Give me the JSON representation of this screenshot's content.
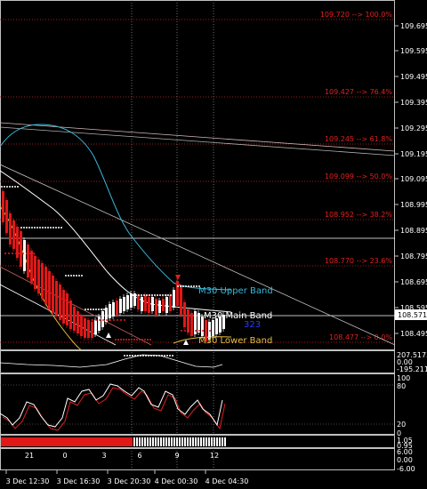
{
  "colors": {
    "background": "#000000",
    "upper_band": "#3ab8d8",
    "main_band": "#ffffff",
    "lower_band": "#e8c040",
    "fib": "#e02020",
    "bear_candle": "#e01818",
    "bull_candle": "#ffffff",
    "price_marker": "#2040ff"
  },
  "price_axis": {
    "ticks": [
      "109.695",
      "109.595",
      "109.495",
      "109.395",
      "109.295",
      "109.195",
      "109.095",
      "108.995",
      "108.895",
      "108.795",
      "108.695",
      "108.595",
      "108.495"
    ],
    "current_price": "108.571"
  },
  "fib_levels": [
    {
      "label": "109.720 --> 100.0%"
    },
    {
      "label": "109.427 --> 76.4%"
    },
    {
      "label": "109.245 --> 61.8%"
    },
    {
      "label": "109.099 --> 50.0%"
    },
    {
      "label": "108.952 --> 38.2%"
    },
    {
      "label": "108.770 --> 23.6%"
    },
    {
      "label": "108.477 --> 0.0%"
    }
  ],
  "band_labels": {
    "upper": "M30 Upper Band",
    "main": "M30 Main Band",
    "lower": "M30 Lower Band"
  },
  "countdown": "323",
  "indicator1": {
    "ticks": [
      "207.5173",
      "0.00",
      "-195.211"
    ]
  },
  "indicator2": {
    "ticks": [
      "100",
      "80",
      "20",
      "0"
    ]
  },
  "indicator3": {
    "ticks": [
      "1.05",
      "0.95"
    ]
  },
  "indicator4": {
    "ticks": [
      "6.00",
      "0.00",
      "-6.00"
    ]
  },
  "hour_labels": [
    "21",
    "0",
    "3",
    "6",
    "9",
    "12"
  ],
  "time_labels": [
    "3 Dec 12:30",
    "3 Dec 16:30",
    "3 Dec 20:30",
    "4 Dec 00:30",
    "4 Dec 04:30"
  ]
}
